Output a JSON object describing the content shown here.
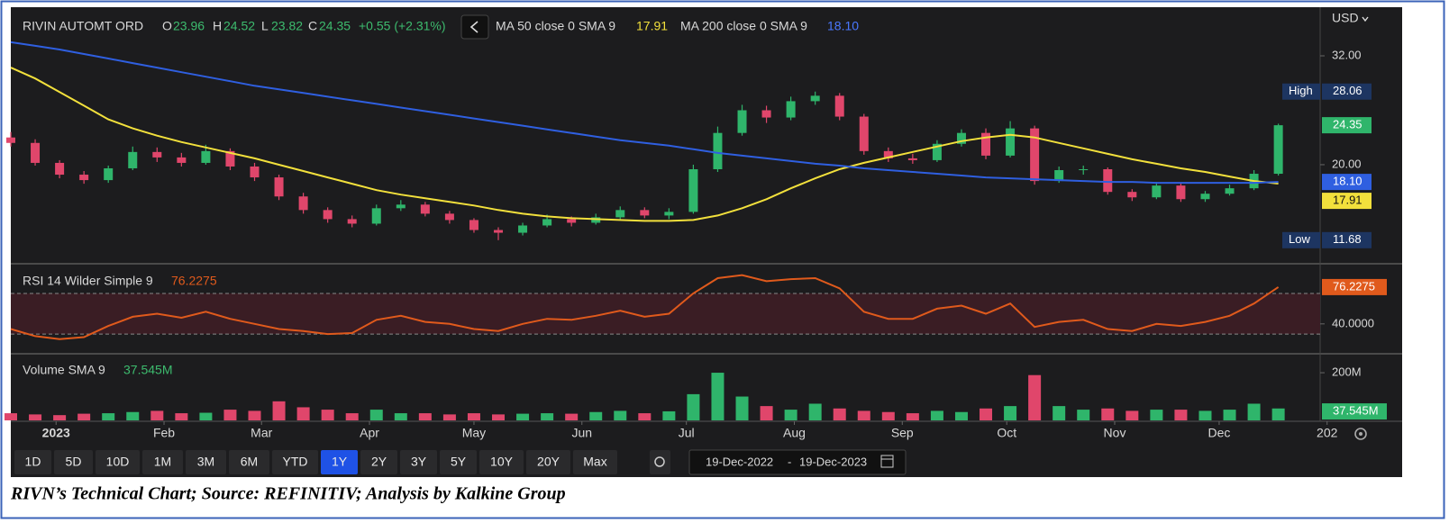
{
  "header": {
    "symbol": "RIVIN AUTOMT ORD",
    "open_key": "O",
    "open": "23.96",
    "high_key": "H",
    "high": "24.52",
    "low_key": "L",
    "low": "23.82",
    "close_key": "C",
    "change": "+0.55 (+2.31%)",
    "currency": "USD"
  },
  "toolbar": {
    "ranges": [
      "1D",
      "5D",
      "10D",
      "1M",
      "3M",
      "6M",
      "YTD",
      "1Y",
      "2Y",
      "3Y",
      "5Y",
      "10Y",
      "20Y",
      "Max"
    ],
    "selected": "1Y",
    "date_from": "19-Dec-2022",
    "separator": "-",
    "date_to": "19-Dec-2023"
  },
  "caption": "RIVN’s Technical Chart; Source: REFINITIV; Analysis by Kalkine Group",
  "chart_data": [
    {
      "type": "candlestick",
      "x": [
        0,
        7,
        14,
        21,
        28,
        35,
        42,
        49,
        56,
        63,
        70,
        77,
        84,
        91,
        98,
        105,
        112,
        119,
        126,
        133,
        140,
        147,
        154,
        161,
        168,
        175,
        182,
        189,
        196,
        203,
        210,
        217,
        224,
        231,
        238,
        245,
        252,
        259,
        266,
        273,
        280,
        287,
        294,
        301,
        308,
        315,
        322,
        329,
        336,
        343,
        350,
        357,
        364
      ],
      "open": [
        23.0,
        22.4,
        20.2,
        18.9,
        18.3,
        19.6,
        21.4,
        20.8,
        20.2,
        21.5,
        19.8,
        18.6,
        16.5,
        15.0,
        14.0,
        13.5,
        15.2,
        15.6,
        14.6,
        13.9,
        12.8,
        12.5,
        13.3,
        14.0,
        13.6,
        14.2,
        15.0,
        14.4,
        14.8,
        19.5,
        23.5,
        26.0,
        25.2,
        27.0,
        27.6,
        25.3,
        21.5,
        20.7,
        20.5,
        22.3,
        23.5,
        21.0,
        24.0,
        18.2,
        19.4,
        19.5,
        17.0,
        16.4,
        17.7,
        16.2,
        16.8,
        17.4,
        19.0
      ],
      "high": [
        23.6,
        22.8,
        20.5,
        19.3,
        19.9,
        22.0,
        21.9,
        21.3,
        22.2,
        21.8,
        20.2,
        18.9,
        16.9,
        15.3,
        14.4,
        15.6,
        16.1,
        15.9,
        14.9,
        14.1,
        13.1,
        13.6,
        14.5,
        14.3,
        14.6,
        15.4,
        15.3,
        15.2,
        20.0,
        24.2,
        26.6,
        26.5,
        27.5,
        28.06,
        27.9,
        25.6,
        21.9,
        21.2,
        22.7,
        23.9,
        24.0,
        24.8,
        24.3,
        19.8,
        19.9,
        19.7,
        17.3,
        18.1,
        18.0,
        17.1,
        17.8,
        19.4,
        24.52
      ],
      "low": [
        22.0,
        19.9,
        18.5,
        17.9,
        18.0,
        19.4,
        20.3,
        19.8,
        20.0,
        19.4,
        18.2,
        16.1,
        14.6,
        13.6,
        13.1,
        13.3,
        14.9,
        14.3,
        13.5,
        12.5,
        11.68,
        12.2,
        13.1,
        13.2,
        13.4,
        14.0,
        14.1,
        14.0,
        14.6,
        19.2,
        23.2,
        24.6,
        24.9,
        26.6,
        24.9,
        21.1,
        20.3,
        20.1,
        20.3,
        22.0,
        20.6,
        20.8,
        17.8,
        18.0,
        18.9,
        16.7,
        16.0,
        16.2,
        15.9,
        15.9,
        16.6,
        17.2,
        18.8
      ],
      "close": [
        22.4,
        20.2,
        18.9,
        18.3,
        19.6,
        21.4,
        20.8,
        20.2,
        21.5,
        19.8,
        18.6,
        16.5,
        15.0,
        14.0,
        13.5,
        15.2,
        15.6,
        14.6,
        13.9,
        12.8,
        12.5,
        13.3,
        14.0,
        13.6,
        14.2,
        15.0,
        14.4,
        14.8,
        19.5,
        23.5,
        26.0,
        25.2,
        27.0,
        27.6,
        25.3,
        21.5,
        20.7,
        20.5,
        22.3,
        23.5,
        21.0,
        24.0,
        18.2,
        19.4,
        19.5,
        17.0,
        16.4,
        17.7,
        16.2,
        16.8,
        17.4,
        19.0,
        24.35
      ],
      "up_color": "#2fb56b",
      "down_color": "#e0466b",
      "series": [
        {
          "name": "MA 50 close 0 SMA 9",
          "color": "#f2e03c",
          "values": [
            30.7,
            29.5,
            28.0,
            26.5,
            25.0,
            24.0,
            23.2,
            22.5,
            21.9,
            21.3,
            20.7,
            20.0,
            19.3,
            18.6,
            17.9,
            17.2,
            16.7,
            16.3,
            15.9,
            15.5,
            15.0,
            14.6,
            14.3,
            14.1,
            14.0,
            13.9,
            13.8,
            13.8,
            13.9,
            14.4,
            15.2,
            16.2,
            17.4,
            18.5,
            19.5,
            20.2,
            20.8,
            21.4,
            22.0,
            22.6,
            23.0,
            23.3,
            23.0,
            22.4,
            21.8,
            21.2,
            20.6,
            20.1,
            19.6,
            19.2,
            18.7,
            18.2,
            17.91
          ]
        },
        {
          "name": "MA 200 close 0 SMA 9",
          "color": "#2f5fe0",
          "values": [
            33.5,
            33.1,
            32.7,
            32.2,
            31.7,
            31.2,
            30.7,
            30.2,
            29.7,
            29.2,
            28.7,
            28.3,
            27.9,
            27.5,
            27.1,
            26.7,
            26.3,
            25.9,
            25.5,
            25.1,
            24.7,
            24.3,
            23.9,
            23.5,
            23.1,
            22.7,
            22.4,
            22.1,
            21.7,
            21.3,
            21.0,
            20.7,
            20.4,
            20.1,
            19.9,
            19.6,
            19.4,
            19.2,
            19.0,
            18.8,
            18.6,
            18.5,
            18.4,
            18.3,
            18.2,
            18.1,
            18.1,
            18.0,
            18.0,
            18.0,
            18.0,
            18.0,
            18.1
          ]
        }
      ],
      "price_tags": [
        {
          "name": "High",
          "value": 28.06,
          "label": "28.06",
          "color": "#1d3561"
        },
        {
          "value": 24.35,
          "label": "24.35",
          "color": "#2fb56b"
        },
        {
          "value": 18.1,
          "label": "18.10",
          "color": "#2f5fe0"
        },
        {
          "value": 17.91,
          "label": "17.91",
          "color": "#f2e03c"
        },
        {
          "name": "Low",
          "value": 11.68,
          "label": "11.68",
          "color": "#1d3561"
        }
      ],
      "xlim": [
        0,
        376
      ],
      "ylim": [
        9.18,
        37.36
      ],
      "yticks": [
        {
          "value": 32,
          "label": "32.00"
        },
        {
          "value": 20,
          "label": "20.00"
        }
      ]
    },
    {
      "type": "line",
      "title": "RSI 14 Wilder Simple 9",
      "x": [
        0,
        7,
        14,
        21,
        28,
        35,
        42,
        49,
        56,
        63,
        70,
        77,
        84,
        91,
        98,
        105,
        112,
        119,
        126,
        133,
        140,
        147,
        154,
        161,
        168,
        175,
        182,
        189,
        196,
        203,
        210,
        217,
        224,
        231,
        238,
        245,
        252,
        259,
        266,
        273,
        280,
        287,
        294,
        301,
        308,
        315,
        322,
        329,
        336,
        343,
        350,
        357,
        364
      ],
      "series": [
        {
          "name": "RSI 14 Wilder Simple 9",
          "color": "#e05a1c",
          "values": [
            35,
            28,
            25,
            27,
            38,
            47,
            50,
            46,
            52,
            45,
            40,
            35,
            33,
            30,
            31,
            44,
            48,
            42,
            40,
            35,
            33,
            40,
            45,
            44,
            48,
            53,
            47,
            50,
            70,
            85,
            88,
            82,
            84,
            85,
            75,
            52,
            45,
            45,
            55,
            58,
            50,
            60,
            37,
            42,
            44,
            35,
            33,
            40,
            38,
            42,
            48,
            60,
            76.2275
          ]
        }
      ],
      "tag": 76.2275,
      "band": [
        30,
        70
      ],
      "xlim": [
        0,
        376
      ],
      "ylim": [
        11.5,
        97.4
      ],
      "yticks": [
        {
          "value": 40,
          "label": "40.0000"
        }
      ]
    },
    {
      "type": "bar",
      "title": "Volume SMA 9",
      "x": [
        0,
        7,
        14,
        21,
        28,
        35,
        42,
        49,
        56,
        63,
        70,
        77,
        84,
        91,
        98,
        105,
        112,
        119,
        126,
        133,
        140,
        147,
        154,
        161,
        168,
        175,
        182,
        189,
        196,
        203,
        210,
        217,
        224,
        231,
        238,
        245,
        252,
        259,
        266,
        273,
        280,
        287,
        294,
        301,
        308,
        315,
        322,
        329,
        336,
        343,
        350,
        357,
        364
      ],
      "values": [
        30,
        25,
        22,
        28,
        30,
        35,
        40,
        30,
        32,
        45,
        40,
        80,
        55,
        45,
        30,
        45,
        30,
        30,
        25,
        30,
        25,
        28,
        30,
        28,
        35,
        40,
        30,
        38,
        110,
        200,
        100,
        60,
        45,
        70,
        50,
        40,
        35,
        30,
        40,
        35,
        50,
        60,
        190,
        60,
        45,
        50,
        40,
        45,
        45,
        40,
        45,
        70,
        50
      ],
      "tag": {
        "value": 37.545,
        "label": "37.545M"
      },
      "tag_color": "#2fb56b",
      "xlim": [
        0,
        376
      ],
      "ylim": [
        0,
        272
      ],
      "yticks": [
        {
          "value": 200,
          "label": "200M"
        }
      ],
      "xticks": [
        {
          "value": 13,
          "label": "2023"
        },
        {
          "value": 44,
          "label": "Feb"
        },
        {
          "value": 72,
          "label": "Mar"
        },
        {
          "value": 103,
          "label": "Apr"
        },
        {
          "value": 133,
          "label": "May"
        },
        {
          "value": 164,
          "label": "Jun"
        },
        {
          "value": 194,
          "label": "Jul"
        },
        {
          "value": 225,
          "label": "Aug"
        },
        {
          "value": 256,
          "label": "Sep"
        },
        {
          "value": 286,
          "label": "Oct"
        },
        {
          "value": 317,
          "label": "Nov"
        },
        {
          "value": 347,
          "label": "Dec"
        },
        {
          "value": 378,
          "label": "202"
        }
      ]
    }
  ]
}
